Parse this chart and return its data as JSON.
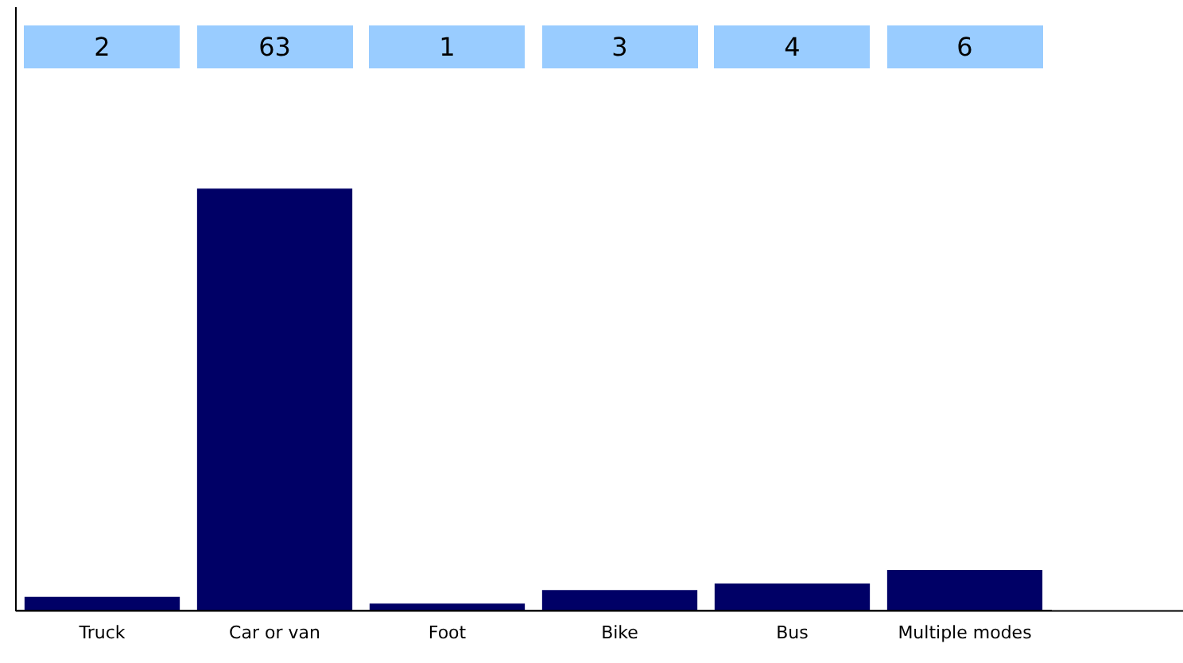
{
  "chart_data": {
    "type": "bar",
    "categories": [
      "Truck",
      "Car or van",
      "Foot",
      "Bike",
      "Bus",
      "Multiple modes"
    ],
    "values": [
      2,
      63,
      1,
      3,
      4,
      6
    ],
    "color": "#000066",
    "data_labels": true,
    "grid": false,
    "legend": false
  }
}
